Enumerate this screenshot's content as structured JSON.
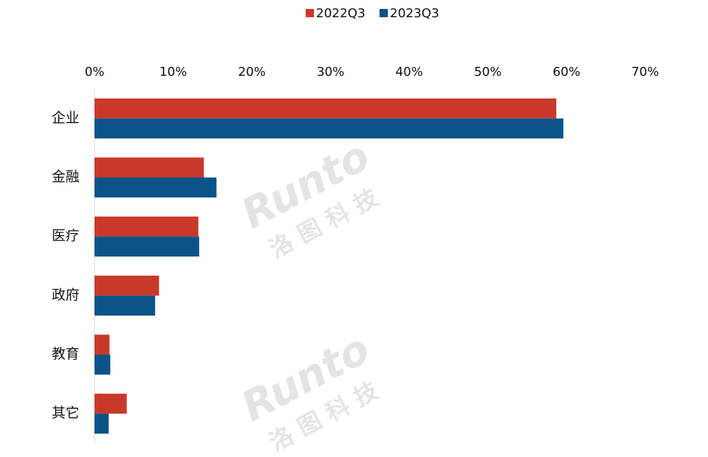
{
  "chart_data": {
    "type": "hbar",
    "categories": [
      "企业",
      "金融",
      "医疗",
      "政府",
      "教育",
      "其它"
    ],
    "series": [
      {
        "name": "2022Q3",
        "color": "#c9392a",
        "values": [
          58.7,
          13.9,
          13.2,
          8.2,
          1.9,
          4.1
        ]
      },
      {
        "name": "2023Q3",
        "color": "#0b5389",
        "values": [
          59.6,
          15.5,
          13.3,
          7.7,
          2.0,
          1.8
        ]
      }
    ],
    "xlim": [
      0,
      70
    ],
    "xticks": [
      {
        "value": 0,
        "label": "0%"
      },
      {
        "value": 10,
        "label": "10%"
      },
      {
        "value": 20,
        "label": "20%"
      },
      {
        "value": 30,
        "label": "30%"
      },
      {
        "value": 40,
        "label": "40%"
      },
      {
        "value": 50,
        "label": "50%"
      },
      {
        "value": 60,
        "label": "60%"
      },
      {
        "value": 70,
        "label": "70%"
      }
    ],
    "legend": "top",
    "watermark": "Runto",
    "watermark_subtext": "洛图科技"
  }
}
